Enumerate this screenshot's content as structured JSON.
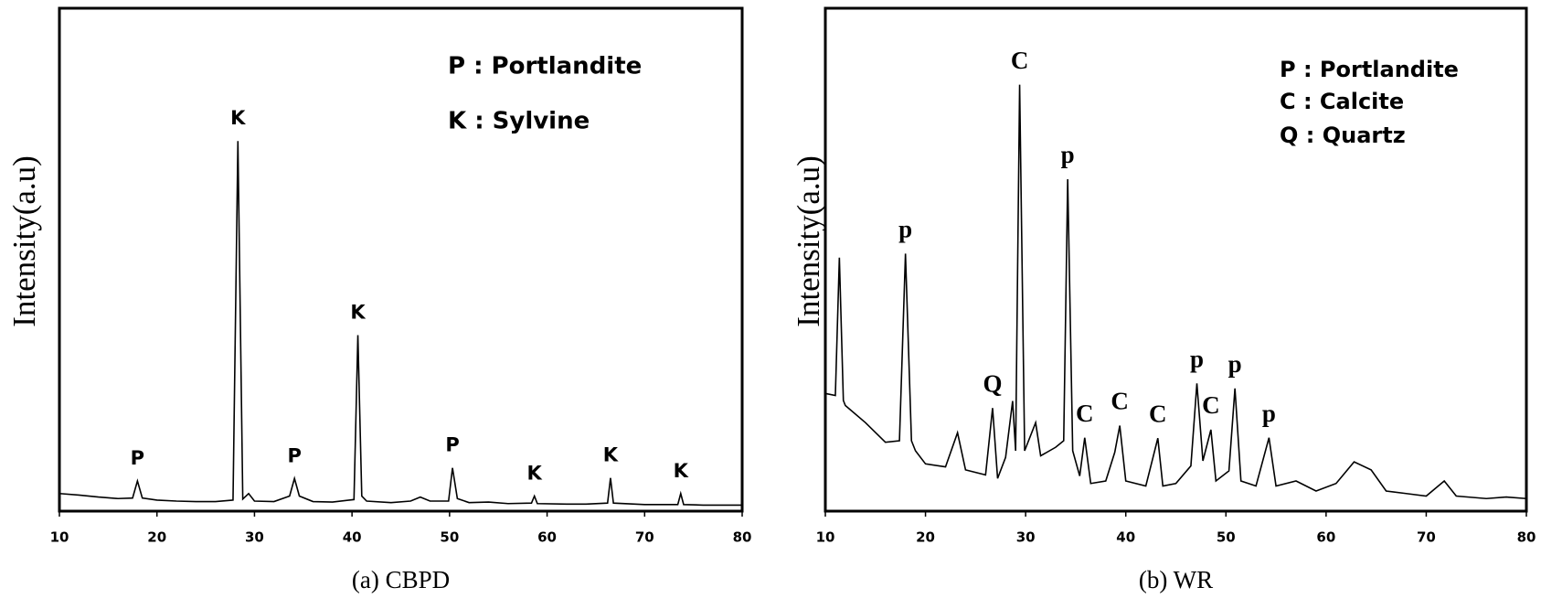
{
  "chart_data": [
    {
      "type": "line",
      "caption": "(a) CBPD",
      "ylabel": "Intensity(a.u)",
      "color": "#000000",
      "xlim": [
        10,
        80
      ],
      "ylim": [
        0,
        100
      ],
      "xticks": [
        10,
        20,
        30,
        40,
        50,
        60,
        70,
        80
      ],
      "legend": [
        "P : Portlandite",
        "K : Sylvine"
      ],
      "x": [
        10,
        12,
        14,
        16,
        17.5,
        18,
        18.5,
        20,
        22,
        24,
        26,
        27.8,
        28.3,
        28.8,
        29.4,
        30,
        32,
        33.6,
        34.1,
        34.6,
        36,
        38,
        40.2,
        40.6,
        41,
        41.5,
        44,
        46,
        47,
        48,
        49.9,
        50.3,
        50.8,
        52,
        54,
        56,
        58.4,
        58.7,
        59,
        62,
        64,
        66.2,
        66.5,
        66.8,
        70,
        73.4,
        73.7,
        74,
        76,
        78,
        80
      ],
      "values": [
        3.5,
        3.2,
        2.8,
        2.5,
        2.6,
        6,
        2.6,
        2.2,
        2,
        1.9,
        1.9,
        2.2,
        73.6,
        2.4,
        3.5,
        2,
        1.9,
        3,
        6.5,
        3,
        1.9,
        1.8,
        2.3,
        35,
        3,
        2,
        1.7,
        2,
        2.8,
        2,
        2,
        8.6,
        2.5,
        1.7,
        1.8,
        1.5,
        1.6,
        3,
        1.5,
        1.4,
        1.4,
        1.6,
        6.6,
        1.6,
        1.3,
        1.3,
        3.5,
        1.3,
        1.2,
        1.2,
        1.2
      ],
      "annotations": [
        {
          "text": "P",
          "x": 18
        },
        {
          "text": "K",
          "x": 28.3
        },
        {
          "text": "P",
          "x": 34.1
        },
        {
          "text": "K",
          "x": 40.6
        },
        {
          "text": "P",
          "x": 50.3
        },
        {
          "text": "K",
          "x": 58.7
        },
        {
          "text": "K",
          "x": 66.5
        },
        {
          "text": "K",
          "x": 73.7
        }
      ]
    },
    {
      "type": "line",
      "caption": "(b) WR",
      "ylabel": "Intensity(a.u)",
      "color": "#000000",
      "xlim": [
        10,
        80
      ],
      "ylim": [
        0,
        100
      ],
      "xticks": [
        10,
        20,
        30,
        40,
        50,
        60,
        70,
        80
      ],
      "legend": [
        "P : Portlandite",
        "C : Calcite",
        "Q : Quartz"
      ],
      "x": [
        10,
        11,
        11.4,
        11.8,
        12,
        14,
        16,
        17.4,
        18,
        18.6,
        19,
        20,
        22,
        23.2,
        24,
        26,
        26.7,
        27.2,
        28,
        28.7,
        29,
        29.4,
        29.9,
        31,
        31.5,
        33,
        33.8,
        34.2,
        34.7,
        35.4,
        35.9,
        36.5,
        38,
        38.9,
        39.4,
        40,
        42,
        43.2,
        43.7,
        45,
        46.5,
        47.1,
        47.7,
        48.5,
        49,
        50.3,
        50.9,
        51.5,
        53,
        54.3,
        55,
        57,
        59,
        61,
        62.8,
        64.5,
        66,
        68,
        70,
        71.8,
        73,
        76,
        78,
        80
      ],
      "values": [
        23.4,
        23,
        50.4,
        22,
        21,
        17.6,
        13.7,
        14,
        51.2,
        14,
        12,
        9.4,
        8.8,
        15.6,
        8.2,
        7.2,
        20.5,
        6.5,
        10.7,
        21.9,
        12,
        84.8,
        12,
        17.6,
        11,
        12.7,
        14,
        66,
        12,
        7,
        14.6,
        5.5,
        6,
        11.7,
        17,
        6,
        5,
        14.5,
        5,
        5.5,
        9,
        25.4,
        10,
        16.2,
        6,
        8,
        24.4,
        6,
        5,
        14.6,
        5,
        6,
        4,
        5.5,
        9.8,
        8.2,
        4,
        3.5,
        3,
        6,
        3,
        2.5,
        2.8,
        2.5
      ],
      "annotations": [
        {
          "text": "p",
          "x": 18
        },
        {
          "text": "Q",
          "x": 26.7
        },
        {
          "text": "C",
          "x": 29.4
        },
        {
          "text": "p",
          "x": 34.2
        },
        {
          "text": "C",
          "x": 35.9
        },
        {
          "text": "C",
          "x": 39.4
        },
        {
          "text": "C",
          "x": 43.2
        },
        {
          "text": "p",
          "x": 47.1
        },
        {
          "text": "C",
          "x": 48.5
        },
        {
          "text": "p",
          "x": 50.9
        },
        {
          "text": "p",
          "x": 54.3
        }
      ]
    }
  ]
}
